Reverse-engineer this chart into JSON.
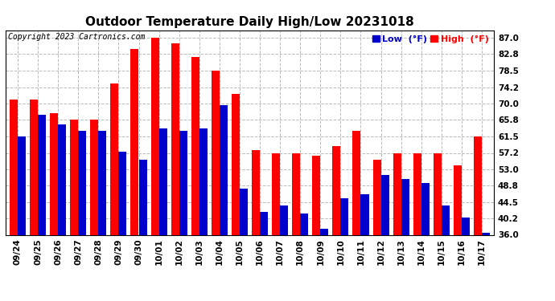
{
  "title": "Outdoor Temperature Daily High/Low 20231018",
  "copyright": "Copyright 2023 Cartronics.com",
  "legend_low_label": "Low  (°F)",
  "legend_high_label": "High  (°F)",
  "dates": [
    "09/24",
    "09/25",
    "09/26",
    "09/27",
    "09/28",
    "09/29",
    "09/30",
    "10/01",
    "10/02",
    "10/03",
    "10/04",
    "10/05",
    "10/06",
    "10/07",
    "10/08",
    "10/09",
    "10/10",
    "10/11",
    "10/12",
    "10/13",
    "10/14",
    "10/15",
    "10/16",
    "10/17"
  ],
  "high": [
    71.0,
    71.0,
    67.5,
    65.8,
    65.8,
    75.2,
    84.2,
    87.0,
    85.5,
    82.0,
    78.5,
    72.5,
    58.0,
    57.2,
    57.2,
    56.5,
    59.0,
    63.0,
    55.5,
    57.2,
    57.2,
    57.2,
    54.0,
    61.5
  ],
  "low": [
    61.5,
    67.0,
    64.5,
    63.0,
    63.0,
    57.5,
    55.5,
    63.5,
    63.0,
    63.5,
    69.5,
    48.0,
    42.0,
    43.5,
    41.5,
    37.5,
    45.5,
    46.5,
    51.5,
    50.5,
    49.5,
    43.5,
    40.5,
    36.5
  ],
  "ylim_min": 36.0,
  "ylim_max": 89.0,
  "yticks": [
    36.0,
    40.2,
    44.5,
    48.8,
    53.0,
    57.2,
    61.5,
    65.8,
    70.0,
    74.2,
    78.5,
    82.8,
    87.0
  ],
  "bar_width": 0.4,
  "high_color": "#ff0000",
  "low_color": "#0000cc",
  "background_color": "#ffffff",
  "grid_color": "#bbbbbb",
  "title_fontsize": 11,
  "tick_fontsize": 7.5,
  "legend_fontsize": 8,
  "copyright_fontsize": 7
}
